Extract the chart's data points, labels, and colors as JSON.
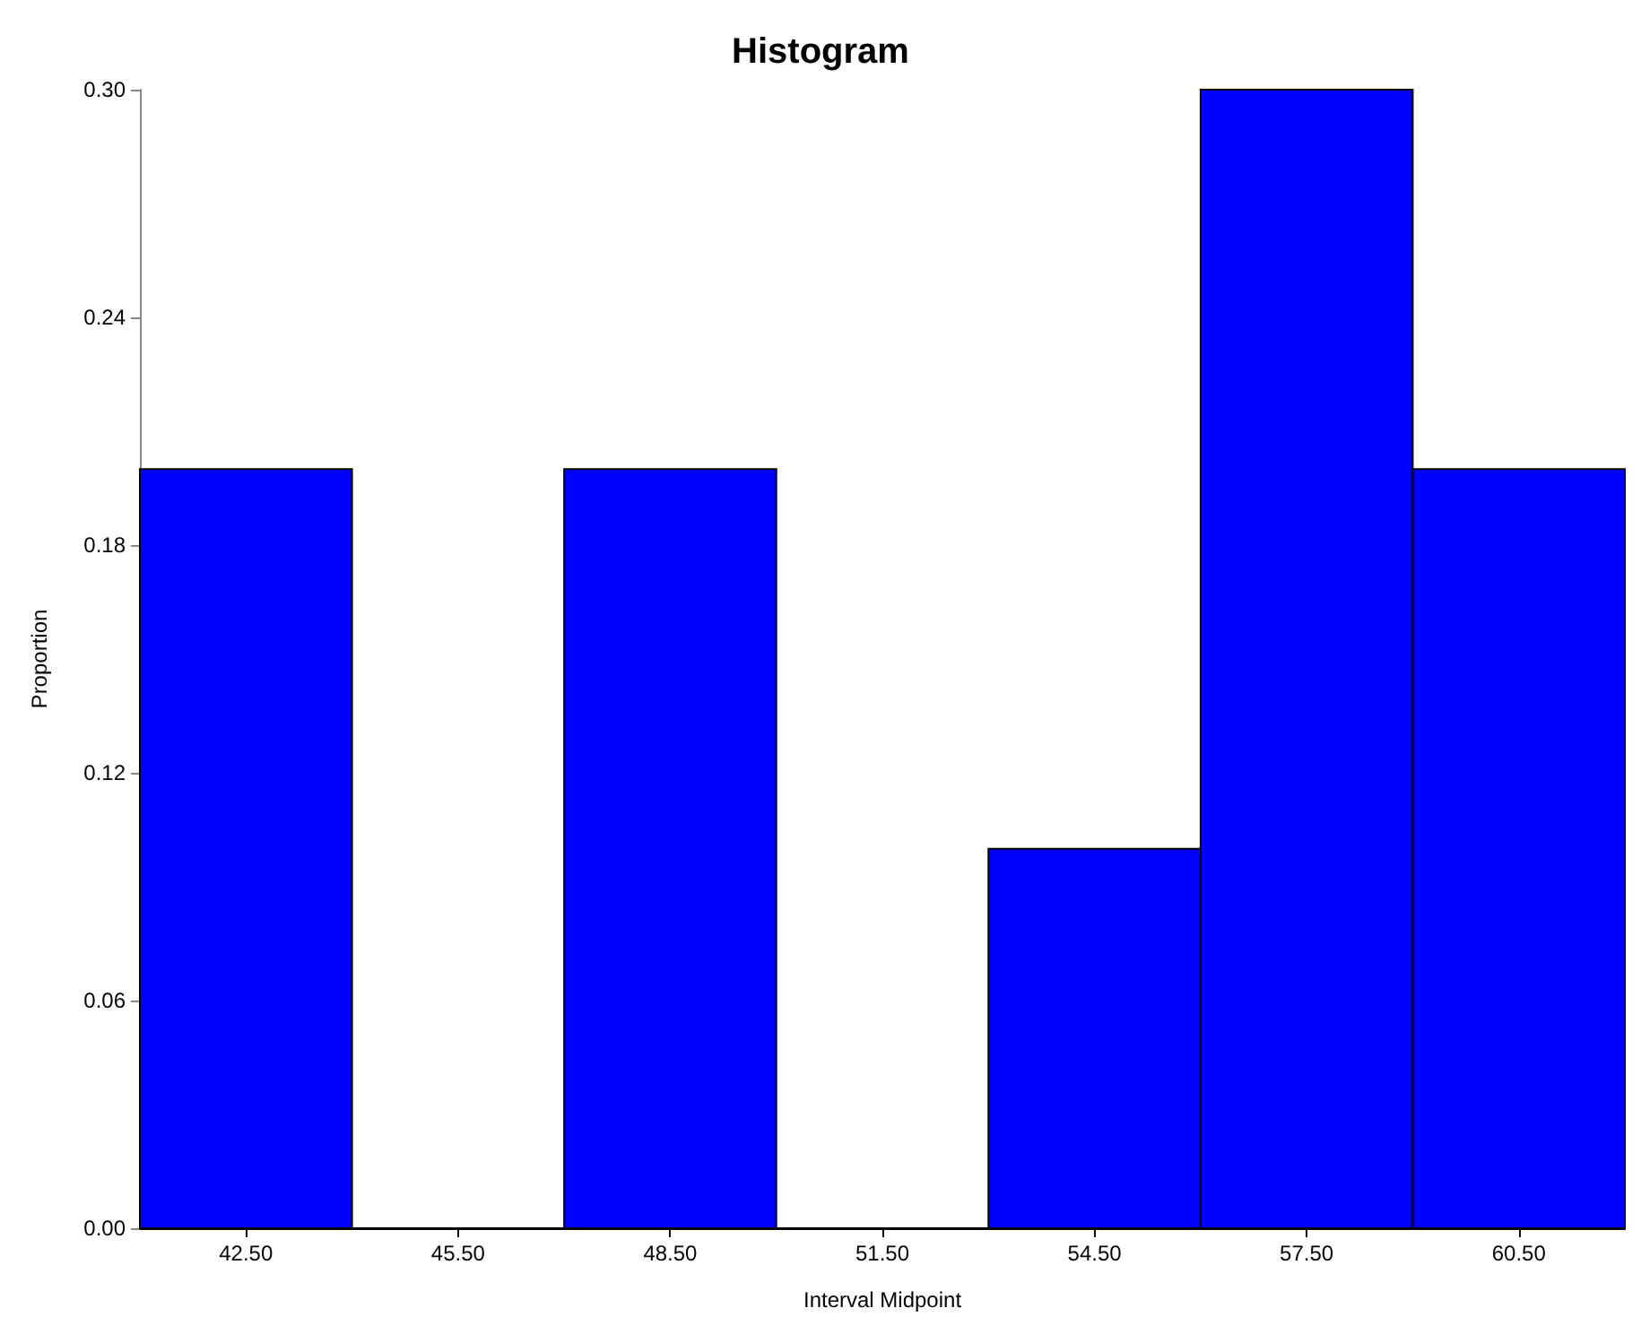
{
  "chart_data": {
    "type": "histogram",
    "title": "Histogram",
    "xlabel": "Interval Midpoint",
    "ylabel": "Proportion",
    "bins": [
      41,
      44,
      47,
      50,
      53,
      56,
      59,
      62
    ],
    "values": [
      0.2,
      0,
      0.2,
      0,
      0.1,
      0.3,
      0.2
    ],
    "color": "#0000ff",
    "xlim": [
      41,
      62
    ],
    "xticks": [
      {
        "value": 42.5,
        "label": "42.50"
      },
      {
        "value": 45.5,
        "label": "45.50"
      },
      {
        "value": 48.5,
        "label": "48.50"
      },
      {
        "value": 51.5,
        "label": "51.50"
      },
      {
        "value": 54.5,
        "label": "54.50"
      },
      {
        "value": 57.5,
        "label": "57.50"
      },
      {
        "value": 60.5,
        "label": "60.50"
      }
    ],
    "ylim": [
      0,
      0.3
    ],
    "yticks": [
      {
        "value": 0,
        "label": "0.00"
      },
      {
        "value": 0.06,
        "label": "0.06"
      },
      {
        "value": 0.12,
        "label": "0.12"
      },
      {
        "value": 0.18,
        "label": "0.18"
      },
      {
        "value": 0.24,
        "label": "0.24"
      },
      {
        "value": 0.3,
        "label": "0.30"
      }
    ],
    "grid": false
  }
}
